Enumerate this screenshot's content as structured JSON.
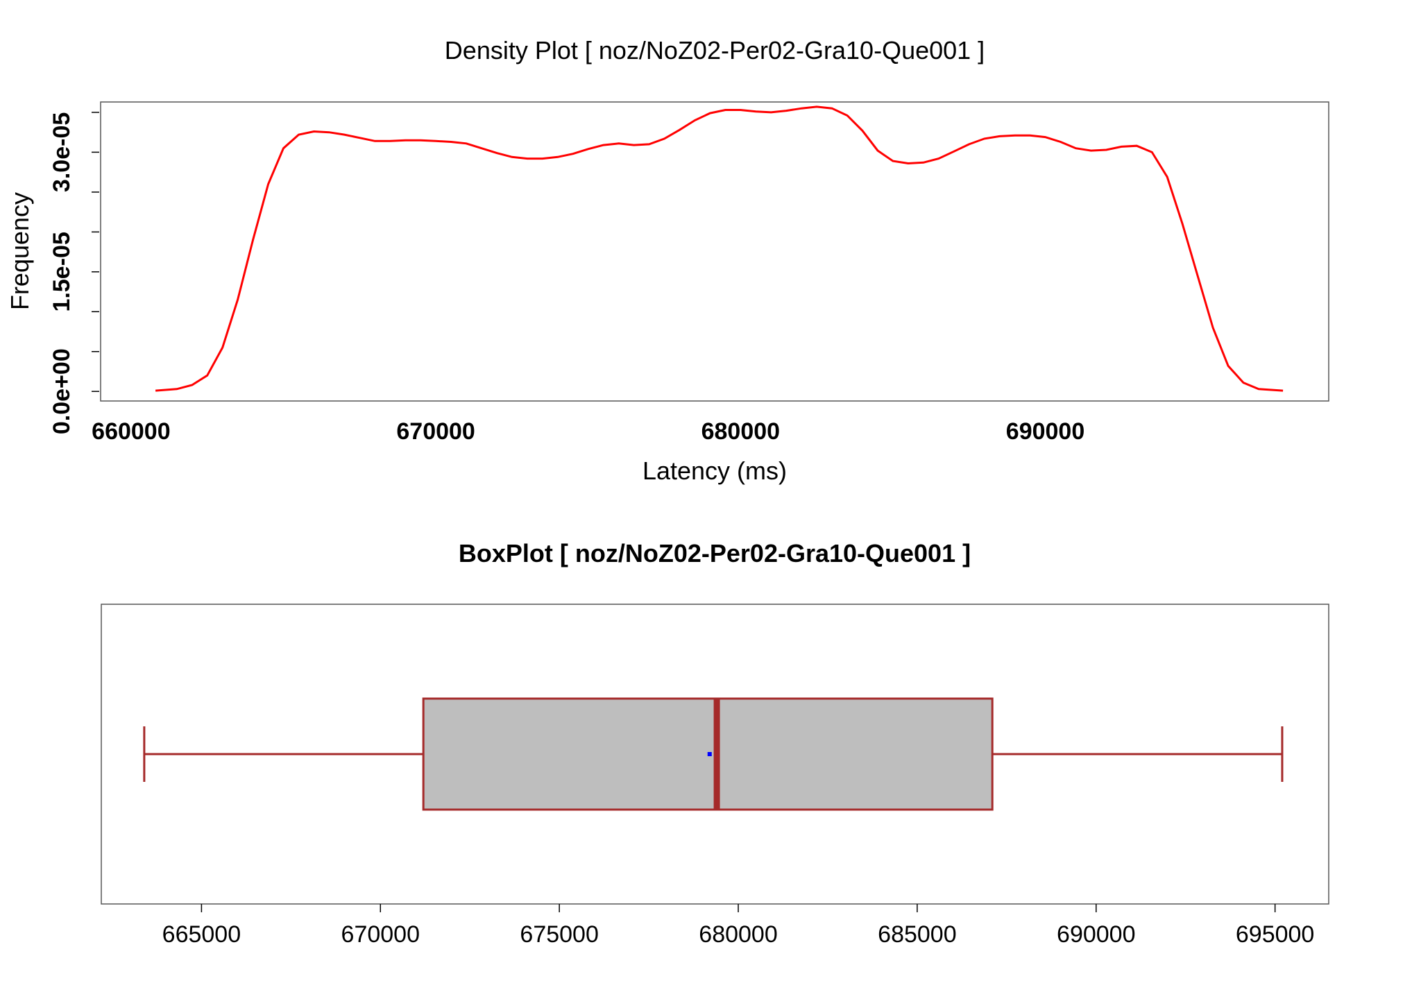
{
  "colors": {
    "density_line": "#ff0000",
    "box_border": "#a52a2a",
    "box_fill": "#bebebe",
    "median_line": "#a52a2a",
    "mean_point": "#0000ff",
    "frame": "#555555"
  },
  "chart_data": [
    {
      "type": "line",
      "title": "Density Plot [ noz/NoZ02-Per02-Gra10-Que001 ]",
      "xlabel": "Latency (ms)",
      "ylabel": "Frequency",
      "xlim": [
        659000,
        699300
      ],
      "ylim": [
        -1.2e-06,
        3.63e-05
      ],
      "x_ticks": [
        660000,
        670000,
        680000,
        690000
      ],
      "x_tick_labels": [
        "660000",
        "670000",
        "680000",
        "690000"
      ],
      "y_ticks": [
        0,
        5e-06,
        1e-05,
        1.5e-05,
        2e-05,
        2.5e-05,
        3e-05,
        3.5e-05
      ],
      "y_tick_labels": [
        "0.0e+00",
        "1.5e-05",
        "3.0e-05"
      ],
      "y_labeled_ticks": [
        0,
        1.5e-05,
        3e-05
      ],
      "grid": false,
      "series": [
        {
          "x": [
            660800,
            661500,
            662000,
            662500,
            663000,
            663500,
            664000,
            664500,
            665000,
            665500,
            666000,
            666500,
            667000,
            667500,
            668000,
            668500,
            669000,
            669500,
            670000,
            670500,
            671000,
            671500,
            672000,
            672500,
            673000,
            673500,
            674000,
            674500,
            675000,
            675500,
            676000,
            676500,
            677000,
            677500,
            678000,
            678500,
            679000,
            679500,
            680000,
            680500,
            681000,
            681500,
            682000,
            682500,
            683000,
            683500,
            684000,
            684500,
            685000,
            685500,
            686000,
            686500,
            687000,
            687500,
            688000,
            688500,
            689000,
            689500,
            690000,
            690500,
            691000,
            691500,
            692000,
            692500,
            693000,
            693500,
            694000,
            694500,
            695000,
            695500,
            696000,
            696500,
            697000,
            697800
          ],
          "y": [
            1e-07,
            3e-07,
            8e-07,
            2e-06,
            5.5e-06,
            1.15e-05,
            1.9e-05,
            2.6e-05,
            3.05e-05,
            3.22e-05,
            3.26e-05,
            3.25e-05,
            3.22e-05,
            3.18e-05,
            3.14e-05,
            3.14e-05,
            3.15e-05,
            3.15e-05,
            3.14e-05,
            3.13e-05,
            3.11e-05,
            3.05e-05,
            2.99e-05,
            2.94e-05,
            2.92e-05,
            2.92e-05,
            2.94e-05,
            2.98e-05,
            3.04e-05,
            3.09e-05,
            3.11e-05,
            3.09e-05,
            3.1e-05,
            3.17e-05,
            3.28e-05,
            3.4e-05,
            3.49e-05,
            3.53e-05,
            3.53e-05,
            3.51e-05,
            3.5e-05,
            3.52e-05,
            3.55e-05,
            3.57e-05,
            3.55e-05,
            3.46e-05,
            3.27e-05,
            3.02e-05,
            2.89e-05,
            2.86e-05,
            2.87e-05,
            2.92e-05,
            3.01e-05,
            3.1e-05,
            3.17e-05,
            3.2e-05,
            3.21e-05,
            3.21e-05,
            3.19e-05,
            3.13e-05,
            3.05e-05,
            3.02e-05,
            3.03e-05,
            3.07e-05,
            3.08e-05,
            3e-05,
            2.69e-05,
            2.1e-05,
            1.45e-05,
            8e-06,
            3.2e-06,
            1.1e-06,
            3e-07,
            1e-07
          ]
        }
      ]
    },
    {
      "type": "box",
      "title": "BoxPlot [ noz/NoZ02-Per02-Gra10-Que001 ]",
      "xlabel": "",
      "ylabel": "",
      "xlim": [
        662200,
        696500
      ],
      "x_ticks": [
        665000,
        670000,
        675000,
        680000,
        685000,
        690000,
        695000
      ],
      "x_tick_labels": [
        "665000",
        "670000",
        "675000",
        "680000",
        "685000",
        "690000",
        "695000"
      ],
      "orientation": "horizontal",
      "whisker_low": 663400,
      "q1": 671200,
      "median": 679400,
      "q3": 687100,
      "whisker_high": 695200,
      "mean": 679200,
      "grid": false
    }
  ]
}
